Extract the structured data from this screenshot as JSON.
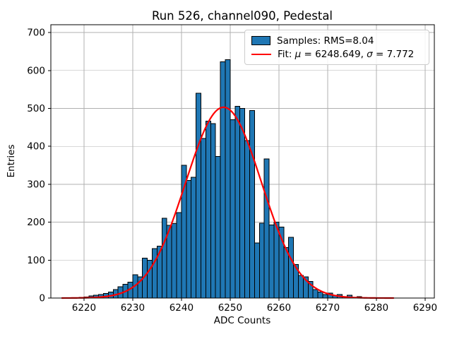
{
  "chart_data": {
    "type": "histogram",
    "title": "Run 526, channel090, Pedestal",
    "xlabel": "ADC Counts",
    "ylabel": "Entries",
    "bin_start": 6218,
    "bin_width": 1,
    "counts": [
      1,
      2,
      3,
      6,
      7,
      9,
      12,
      16,
      22,
      30,
      36,
      42,
      61,
      56,
      105,
      100,
      130,
      137,
      210,
      192,
      196,
      225,
      350,
      310,
      318,
      540,
      421,
      466,
      460,
      373,
      623,
      628,
      470,
      506,
      500,
      415,
      494,
      145,
      197,
      367,
      193,
      200,
      187,
      133,
      160,
      88,
      60,
      56,
      44,
      22,
      16,
      9,
      13,
      7,
      9,
      4,
      7,
      2,
      4
    ],
    "x_ticks": [
      6220,
      6230,
      6240,
      6250,
      6260,
      6270,
      6280,
      6290
    ],
    "y_ticks": [
      0,
      100,
      200,
      300,
      400,
      500,
      600,
      700
    ],
    "xlim": [
      6213.2,
      6291.9
    ],
    "ylim": [
      0,
      720.6
    ],
    "grid": true,
    "grid_color": "#b0b0b0",
    "bar_color": "#1f77b4",
    "bar_edge_color": "#000000",
    "axis_color": "#000000",
    "fit": {
      "type": "gaussian",
      "mu": 6248.649,
      "sigma": 7.772,
      "amplitude": 503,
      "x_start": 6215.5,
      "x_end": 6283.5,
      "color": "#ff0000",
      "line_width": 2.2
    },
    "legend": {
      "samples_label": "Samples: RMS=8.04",
      "fit_label_parts": [
        "Fit: ",
        "μ",
        " = 6248.649, ",
        "σ",
        " = 7.772"
      ]
    }
  }
}
